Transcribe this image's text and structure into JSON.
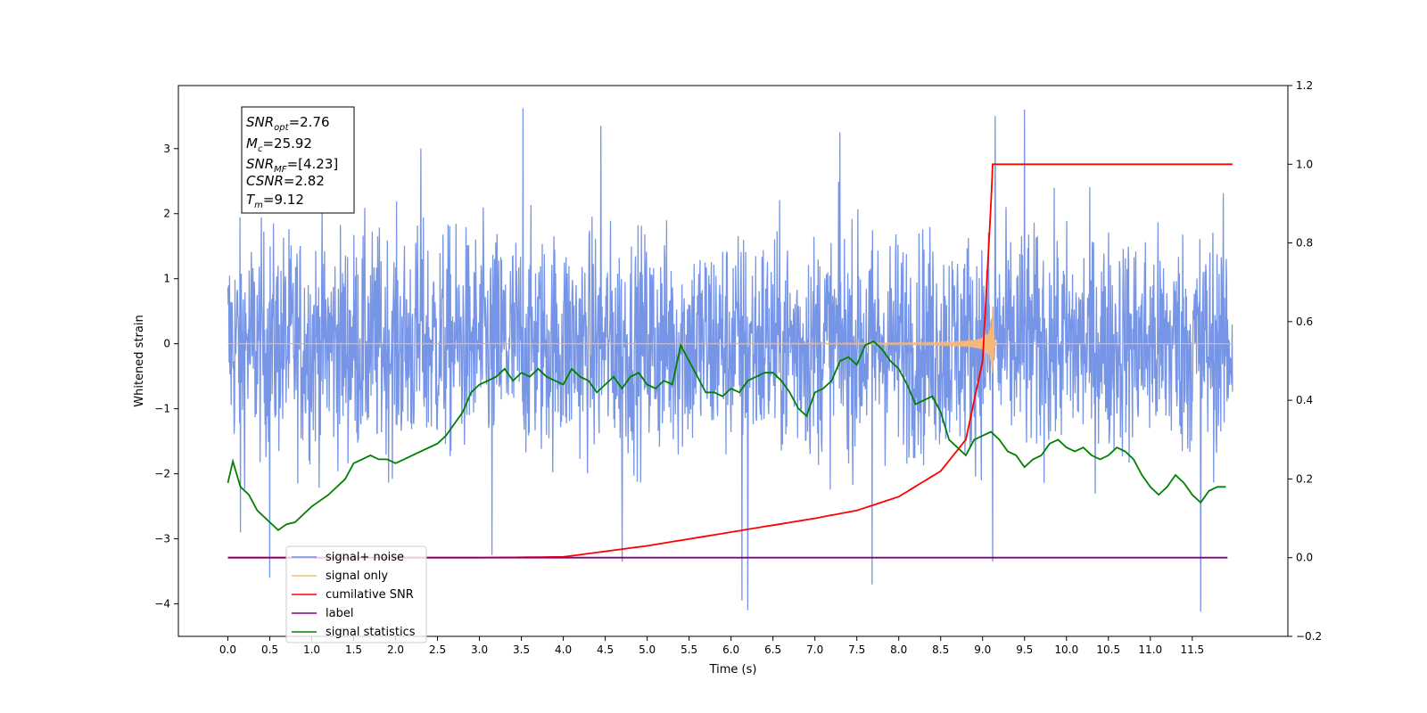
{
  "chart_data": {
    "type": "line",
    "xlabel": "Time (s)",
    "ylabel": "Whitened strain",
    "xlim": [
      -0.59,
      12.64
    ],
    "ylim_left": [
      -4.5,
      3.97
    ],
    "ylim_right": [
      -0.2,
      1.2
    ],
    "x_ticks": [
      "0.0",
      "0.5",
      "1.0",
      "1.5",
      "2.0",
      "2.5",
      "3.0",
      "3.5",
      "4.0",
      "4.5",
      "5.0",
      "5.5",
      "6.0",
      "6.5",
      "7.0",
      "7.5",
      "8.0",
      "8.5",
      "9.0",
      "9.5",
      "10.0",
      "10.5",
      "11.0",
      "11.5"
    ],
    "y_ticks_left": [
      "3",
      "2",
      "1",
      "0",
      "−1",
      "−2",
      "−3",
      "−4"
    ],
    "y_ticks_right": [
      "1.2",
      "1.0",
      "0.8",
      "0.6",
      "0.4",
      "0.2",
      "0.0",
      "−0.2"
    ],
    "annotation": {
      "lines": [
        {
          "label": "SNR",
          "sub": "opt",
          "value": "=2.76"
        },
        {
          "label": "M",
          "sub": "c",
          "value": "=25.92"
        },
        {
          "label": "SNR",
          "sub": "MF",
          "value": "=[4.23]"
        },
        {
          "label": "CSNR",
          "sub": "",
          "value": "=2.82"
        },
        {
          "label": "T",
          "sub": "m",
          "value": "=9.12"
        }
      ]
    },
    "legend": {
      "position": "lower-left",
      "entries": [
        {
          "label": "signal+ noise",
          "color": "#6f8fe6"
        },
        {
          "label": "signal only",
          "color": "#f5c07a"
        },
        {
          "label": "cumilative SNR",
          "color": "#ff0000"
        },
        {
          "label": "label",
          "color": "#800080"
        },
        {
          "label": "signal statistics",
          "color": "#008000"
        }
      ]
    },
    "series": [
      {
        "name": "signal+ noise",
        "axis": "left",
        "color": "#6f8fe6",
        "t_start": 0.0,
        "t_end": 11.98,
        "envelope_typical": 1.9,
        "spikes": [
          {
            "x": 3.52,
            "y": 3.62
          },
          {
            "x": 4.45,
            "y": 3.35
          },
          {
            "x": 2.3,
            "y": 3.0
          },
          {
            "x": 9.15,
            "y": 3.5
          },
          {
            "x": 9.5,
            "y": 3.6
          },
          {
            "x": 7.3,
            "y": 3.25
          },
          {
            "x": 6.13,
            "y": -3.95
          },
          {
            "x": 6.2,
            "y": -4.1
          },
          {
            "x": 7.68,
            "y": -3.7
          },
          {
            "x": 11.6,
            "y": -4.12
          },
          {
            "x": 0.5,
            "y": -3.6
          },
          {
            "x": 4.7,
            "y": -3.35
          },
          {
            "x": 9.12,
            "y": -3.35
          },
          {
            "x": 0.15,
            "y": -2.9
          },
          {
            "x": 3.15,
            "y": -3.25
          }
        ]
      },
      {
        "name": "signal only",
        "axis": "left",
        "color": "#f5b87a",
        "chirp_peak_time": 9.12,
        "chirp_peak_amplitude": 0.6
      },
      {
        "name": "cumilative SNR",
        "axis": "right",
        "color": "#ff0000",
        "x": [
          0.0,
          3.0,
          4.0,
          5.0,
          6.0,
          7.0,
          7.5,
          8.0,
          8.5,
          8.8,
          9.0,
          9.1,
          9.12,
          11.98
        ],
        "y": [
          0.0,
          0.0,
          0.002,
          0.03,
          0.065,
          0.1,
          0.12,
          0.155,
          0.22,
          0.3,
          0.5,
          0.9,
          1.0,
          1.0
        ]
      },
      {
        "name": "label",
        "axis": "right",
        "color": "#800080",
        "x": [
          0.0,
          11.92
        ],
        "y": [
          0.0,
          0.0
        ]
      },
      {
        "name": "signal statistics",
        "axis": "right",
        "color": "#008000",
        "x": [
          0.0,
          0.06,
          0.15,
          0.25,
          0.35,
          0.5,
          0.6,
          0.7,
          0.8,
          1.0,
          1.2,
          1.4,
          1.5,
          1.6,
          1.7,
          1.8,
          1.9,
          2.0,
          2.1,
          2.3,
          2.5,
          2.6,
          2.7,
          2.8,
          2.9,
          3.0,
          3.2,
          3.3,
          3.4,
          3.5,
          3.6,
          3.7,
          3.8,
          3.9,
          4.0,
          4.1,
          4.2,
          4.3,
          4.4,
          4.5,
          4.6,
          4.7,
          4.8,
          4.9,
          5.0,
          5.1,
          5.2,
          5.3,
          5.4,
          5.5,
          5.6,
          5.7,
          5.8,
          5.9,
          6.0,
          6.1,
          6.2,
          6.3,
          6.4,
          6.5,
          6.6,
          6.7,
          6.8,
          6.9,
          7.0,
          7.1,
          7.2,
          7.3,
          7.4,
          7.5,
          7.6,
          7.7,
          7.8,
          7.9,
          8.0,
          8.1,
          8.2,
          8.3,
          8.4,
          8.5,
          8.6,
          8.7,
          8.8,
          8.9,
          9.0,
          9.1,
          9.2,
          9.3,
          9.4,
          9.5,
          9.6,
          9.7,
          9.8,
          9.9,
          10.0,
          10.1,
          10.2,
          10.3,
          10.4,
          10.5,
          10.6,
          10.7,
          10.8,
          10.9,
          11.0,
          11.1,
          11.2,
          11.3,
          11.4,
          11.5,
          11.6,
          11.7,
          11.8,
          11.9
        ],
        "y": [
          0.19,
          0.245,
          0.18,
          0.16,
          0.12,
          0.09,
          0.07,
          0.085,
          0.09,
          0.13,
          0.16,
          0.2,
          0.24,
          0.25,
          0.26,
          0.25,
          0.25,
          0.24,
          0.25,
          0.27,
          0.29,
          0.31,
          0.34,
          0.37,
          0.42,
          0.44,
          0.46,
          0.48,
          0.45,
          0.47,
          0.46,
          0.48,
          0.46,
          0.45,
          0.44,
          0.48,
          0.46,
          0.45,
          0.42,
          0.44,
          0.46,
          0.43,
          0.46,
          0.47,
          0.44,
          0.43,
          0.45,
          0.44,
          0.54,
          0.5,
          0.46,
          0.42,
          0.42,
          0.41,
          0.43,
          0.42,
          0.45,
          0.46,
          0.47,
          0.47,
          0.45,
          0.42,
          0.38,
          0.36,
          0.42,
          0.43,
          0.45,
          0.5,
          0.51,
          0.49,
          0.54,
          0.55,
          0.53,
          0.5,
          0.48,
          0.44,
          0.39,
          0.4,
          0.41,
          0.37,
          0.3,
          0.28,
          0.26,
          0.3,
          0.31,
          0.32,
          0.3,
          0.27,
          0.26,
          0.23,
          0.25,
          0.26,
          0.29,
          0.3,
          0.28,
          0.27,
          0.28,
          0.26,
          0.25,
          0.26,
          0.28,
          0.27,
          0.25,
          0.21,
          0.18,
          0.16,
          0.18,
          0.21,
          0.19,
          0.16,
          0.14,
          0.17,
          0.18,
          0.18
        ]
      }
    ]
  }
}
